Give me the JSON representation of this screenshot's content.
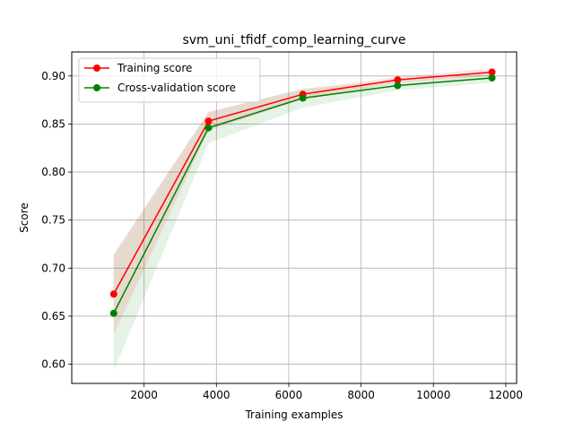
{
  "chart_data": {
    "type": "line",
    "title": "svm_uni_tfidf_comp_learning_curve",
    "xlabel": "Training examples",
    "ylabel": "Score",
    "xlim": [
      0,
      12300
    ],
    "ylim": [
      0.58,
      0.925
    ],
    "xticks": [
      2000,
      4000,
      6000,
      8000,
      10000,
      12000
    ],
    "yticks": [
      0.6,
      0.65,
      0.7,
      0.75,
      0.8,
      0.85,
      0.9
    ],
    "xtick_labels": [
      "2000",
      "4000",
      "6000",
      "8000",
      "10000",
      "12000"
    ],
    "ytick_labels": [
      "0.60",
      "0.65",
      "0.70",
      "0.75",
      "0.80",
      "0.85",
      "0.90"
    ],
    "grid": true,
    "legend_position": "top-left",
    "x": [
      1160,
      3780,
      6390,
      9010,
      11620
    ],
    "series": [
      {
        "name": "Training score",
        "color": "#ff0000",
        "values": [
          0.673,
          0.853,
          0.881,
          0.896,
          0.904
        ],
        "band_lower": [
          0.631,
          0.843,
          0.876,
          0.893,
          0.9
        ],
        "band_upper": [
          0.715,
          0.863,
          0.886,
          0.899,
          0.908
        ]
      },
      {
        "name": "Cross-validation score",
        "color": "#008000",
        "values": [
          0.653,
          0.846,
          0.877,
          0.89,
          0.898
        ],
        "band_lower": [
          0.593,
          0.83,
          0.867,
          0.885,
          0.893
        ],
        "band_upper": [
          0.713,
          0.862,
          0.887,
          0.895,
          0.903
        ]
      }
    ]
  }
}
